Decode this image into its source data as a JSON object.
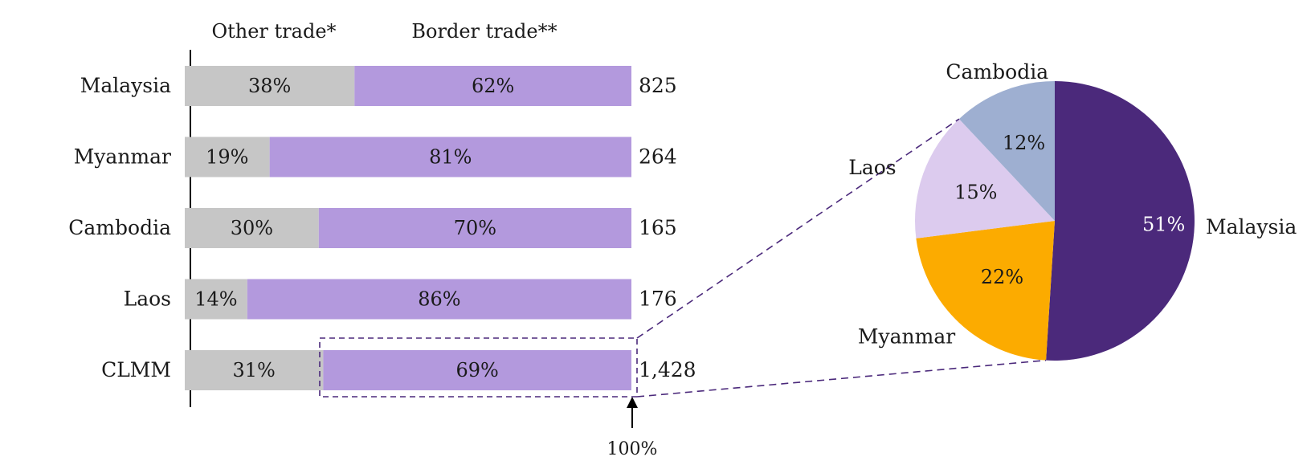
{
  "chart_data": [
    {
      "type": "bar",
      "stacked": true,
      "orientation": "horizontal",
      "normalized": true,
      "categories": [
        "Malaysia",
        "Myanmar",
        "Cambodia",
        "Laos",
        "CLMM"
      ],
      "series": [
        {
          "name": "Other trade*",
          "values": [
            38,
            19,
            30,
            14,
            31
          ],
          "labels": [
            "38%",
            "19%",
            "30%",
            "14%",
            "31%"
          ],
          "color": "#c6c6c6"
        },
        {
          "name": "Border trade**",
          "values": [
            62,
            81,
            70,
            86,
            69
          ],
          "labels": [
            "62%",
            "81%",
            "70%",
            "86%",
            "69%"
          ],
          "color": "#b399dd"
        }
      ],
      "totals": [
        "825",
        "264",
        "165",
        "176",
        "1,428"
      ],
      "scale_marker_label": "100%",
      "highlight": "CLMM Border trade**"
    },
    {
      "type": "pie",
      "labels": [
        "Malaysia",
        "Myanmar",
        "Laos",
        "Cambodia"
      ],
      "values": [
        51,
        22,
        15,
        12
      ],
      "value_labels": [
        "51%",
        "22%",
        "15%",
        "12%"
      ],
      "colors": [
        "#4b297b",
        "#fcab00",
        "#dccbee",
        "#9eafd1"
      ],
      "value_label_colors": [
        "#ffffff",
        "#1a1a1a",
        "#1a1a1a",
        "#1a1a1a"
      ]
    }
  ],
  "colors": {
    "text": "#1a1a1a",
    "axis": "#000000",
    "connector": "#4b297b"
  }
}
